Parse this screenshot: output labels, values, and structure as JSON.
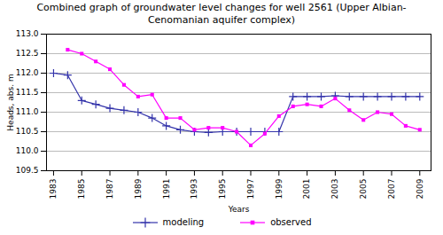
{
  "chart_data": {
    "type": "line",
    "title": "Combined graph of groundwater level changes for well 2561 (Upper Albian-\nCenomanian aquifer complex)",
    "xlabel": "Years",
    "ylabel": "Heads, abs. m",
    "x": [
      1983,
      1984,
      1985,
      1986,
      1987,
      1988,
      1989,
      1990,
      1991,
      1992,
      1993,
      1994,
      1995,
      1996,
      1997,
      1998,
      1999,
      2000,
      2001,
      2002,
      2003,
      2004,
      2005,
      2006,
      2007,
      2008,
      2009
    ],
    "series": [
      {
        "name": "modeling",
        "color": "#3333aa",
        "marker": "plus",
        "values": [
          112.0,
          111.95,
          111.3,
          111.2,
          111.1,
          111.05,
          111.0,
          110.85,
          110.65,
          110.55,
          110.5,
          110.48,
          110.5,
          110.5,
          110.5,
          110.5,
          110.5,
          111.4,
          111.4,
          111.4,
          111.42,
          111.4,
          111.4,
          111.4,
          111.4,
          111.4,
          111.4
        ]
      },
      {
        "name": "observed",
        "color": "#ff00ff",
        "marker": "square",
        "values": [
          null,
          112.6,
          112.5,
          112.3,
          112.1,
          111.7,
          111.4,
          111.45,
          110.85,
          110.85,
          110.55,
          110.6,
          110.6,
          110.5,
          110.15,
          110.45,
          110.9,
          111.15,
          111.2,
          111.15,
          111.35,
          111.05,
          110.8,
          111.0,
          110.95,
          110.65,
          110.55
        ]
      }
    ],
    "xlim": [
      1982.5,
      2009.8
    ],
    "xticks": [
      1983,
      1985,
      1987,
      1989,
      1991,
      1993,
      1995,
      1997,
      1999,
      2001,
      2003,
      2005,
      2007,
      2009
    ],
    "ylim": [
      109.5,
      113
    ],
    "yticks": [
      109.5,
      {
        "value": 110,
        "label": "110.0"
      },
      110.5,
      {
        "value": 111,
        "label": "111.0"
      },
      111.5,
      {
        "value": 112,
        "label": "112.0"
      },
      112.5,
      {
        "value": 113,
        "label": "113.0"
      }
    ],
    "grid": "y",
    "legend": "bottom"
  }
}
